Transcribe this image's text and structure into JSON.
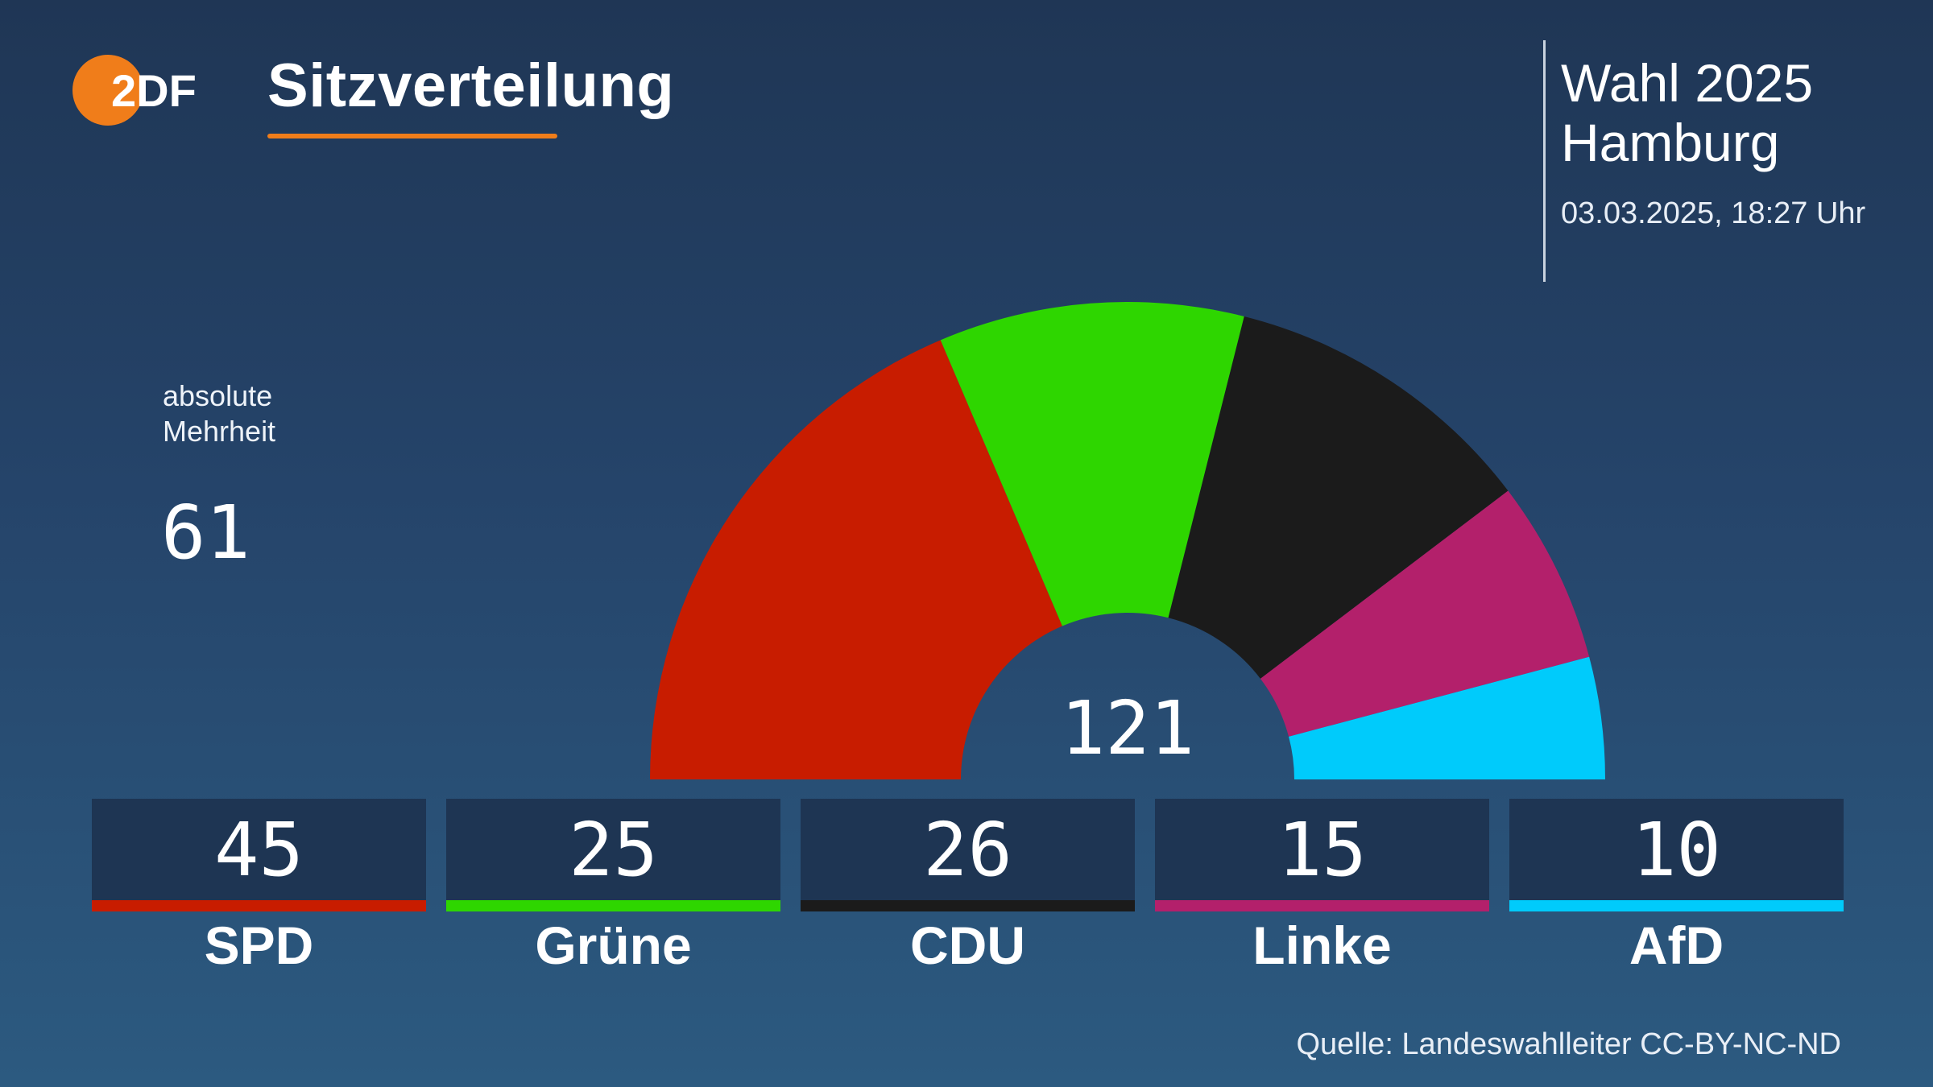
{
  "header": {
    "logo_text": "2DF",
    "title": "Sitzverteilung",
    "election": "Wahl 2025",
    "region": "Hamburg",
    "datetime": "03.03.2025, 18:27 Uhr"
  },
  "majority": {
    "label": "absolute Mehrheit",
    "value": "61"
  },
  "total_seats": "121",
  "colors": {
    "accent": "#f07d1a",
    "SPD": "#c81c00",
    "Grüne": "#2ed600",
    "CDU": "#1b1b1b",
    "Linke": "#b3206b",
    "AfD": "#00cbfb"
  },
  "chart_data": {
    "type": "pie",
    "subtype": "half-donut",
    "title": "Sitzverteilung",
    "total_label": "121",
    "categories": [
      "SPD",
      "Grüne",
      "CDU",
      "Linke",
      "AfD"
    ],
    "values": [
      45,
      25,
      26,
      15,
      10
    ],
    "colors": [
      "#c81c00",
      "#2ed600",
      "#1b1b1b",
      "#b3206b",
      "#00cbfb"
    ]
  },
  "source": "Quelle: Landeswahlleiter CC-BY-NC-ND"
}
